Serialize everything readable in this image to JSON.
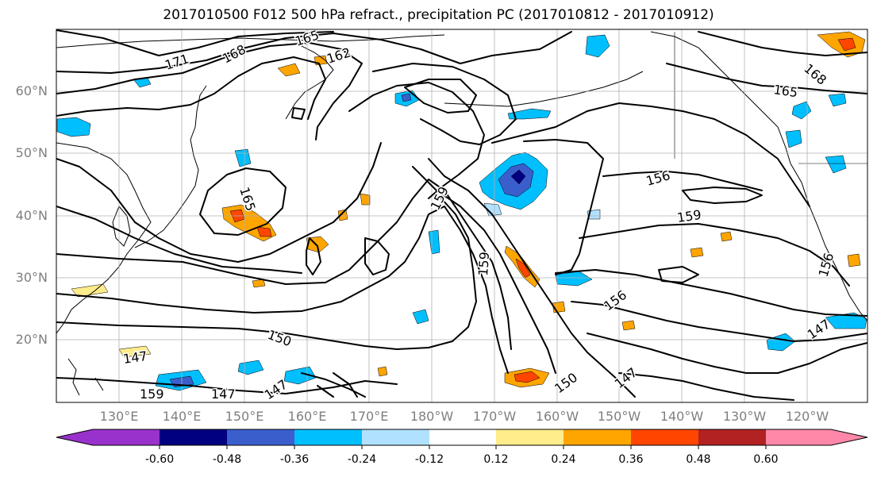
{
  "title": "2017010500 F012 500 hPa refract., precipitation PC (2017010812 - 2017010912)",
  "latitude_labels": [
    "60°N",
    "50°N",
    "40°N",
    "30°N",
    "20°N"
  ],
  "longitude_labels": [
    "130°E",
    "140°E",
    "150°E",
    "160°E",
    "170°E",
    "180°W",
    "170°W",
    "160°W",
    "150°W",
    "140°W",
    "130°W",
    "120°W"
  ],
  "contour_labels": [
    "171",
    "168",
    "165",
    "162",
    "165",
    "159",
    "159",
    "156",
    "159",
    "165",
    "168",
    "156",
    "156",
    "150",
    "147",
    "147",
    "147",
    "150",
    "147",
    "159",
    "147"
  ],
  "colorbar": {
    "colors": [
      "#9932cc",
      "#000080",
      "#3a5fcd",
      "#00bfff",
      "#b0e2ff",
      "#ffffff",
      "#ffec8b",
      "#ffa500",
      "#ff4500",
      "#b22222",
      "#ff88a8"
    ],
    "tick_labels": [
      "-0.60",
      "-0.48",
      "-0.36",
      "-0.24",
      "-0.12",
      "0.12",
      "0.24",
      "0.36",
      "0.48",
      "0.60"
    ]
  },
  "colors": {
    "coastline": "#000000",
    "contour": "#000000",
    "grid": "#b0b0b0",
    "axis_label": "#7f7f7f"
  }
}
